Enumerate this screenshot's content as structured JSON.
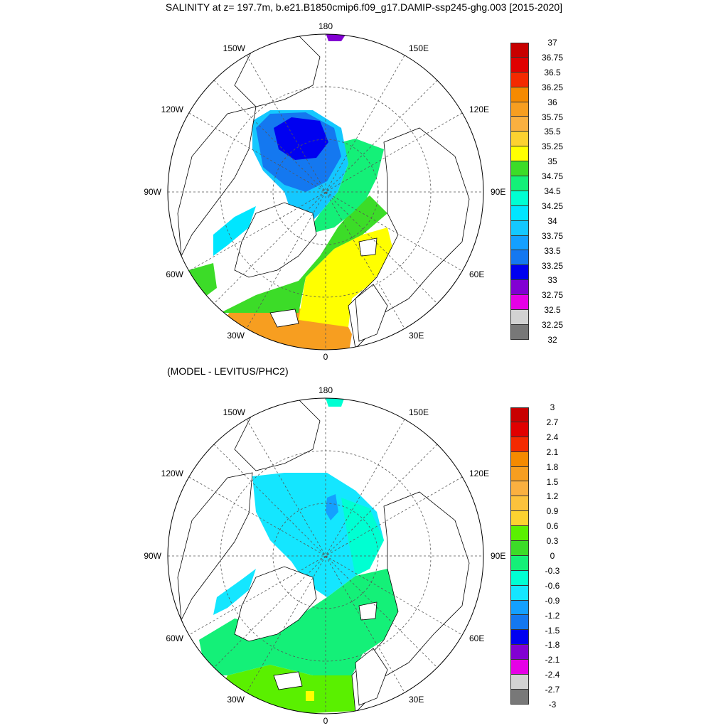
{
  "title": "SALINITY at z= 197.7m, b.e21.B1850cmip6.f09_g17.DAMIP-ssp245-ghg.003 [2015-2020]",
  "subtitle": "(MODEL - LEVITUS/PHC2)",
  "lon_labels": {
    "top": "180",
    "bottom": "0",
    "left": "90W",
    "right": "90E",
    "ul1": "150W",
    "ul2": "120W",
    "ur1": "150E",
    "ur2": "120E",
    "ll1": "60W",
    "ll2": "30W",
    "lr1": "60E",
    "lr2": "30E"
  },
  "colorbar_top": {
    "labels": [
      "37",
      "36.75",
      "36.5",
      "36.25",
      "36",
      "35.75",
      "35.5",
      "35.25",
      "35",
      "34.75",
      "34.5",
      "34.25",
      "34",
      "33.75",
      "33.5",
      "33.25",
      "33",
      "32.75",
      "32.5",
      "32.25",
      "32"
    ],
    "colors": [
      "#c80000",
      "#e00000",
      "#f42a00",
      "#f58a00",
      "#f79e20",
      "#fab040",
      "#fcd230",
      "#ffff00",
      "#3cdc28",
      "#14f078",
      "#00ffd2",
      "#00e6ff",
      "#14c8ff",
      "#14a0ff",
      "#1478f0",
      "#0000f0",
      "#8200d2",
      "#e600e6",
      "#d2d2d2",
      "#787878"
    ]
  },
  "colorbar_bottom": {
    "labels": [
      "3",
      "2.7",
      "2.4",
      "2.1",
      "1.8",
      "1.5",
      "1.2",
      "0.9",
      "0.6",
      "0.3",
      "0",
      "-0.3",
      "-0.6",
      "-0.9",
      "-1.2",
      "-1.5",
      "-1.8",
      "-2.1",
      "-2.4",
      "-2.7",
      "-3"
    ],
    "colors": [
      "#c80000",
      "#e00000",
      "#f42a00",
      "#f58a00",
      "#f79e20",
      "#fab040",
      "#fcc23c",
      "#fcd230",
      "#5af000",
      "#3cdc28",
      "#14f078",
      "#00ffd2",
      "#14e6ff",
      "#14a0ff",
      "#1478f0",
      "#0000f0",
      "#8200d2",
      "#e600e6",
      "#d2d2d2",
      "#787878"
    ]
  }
}
